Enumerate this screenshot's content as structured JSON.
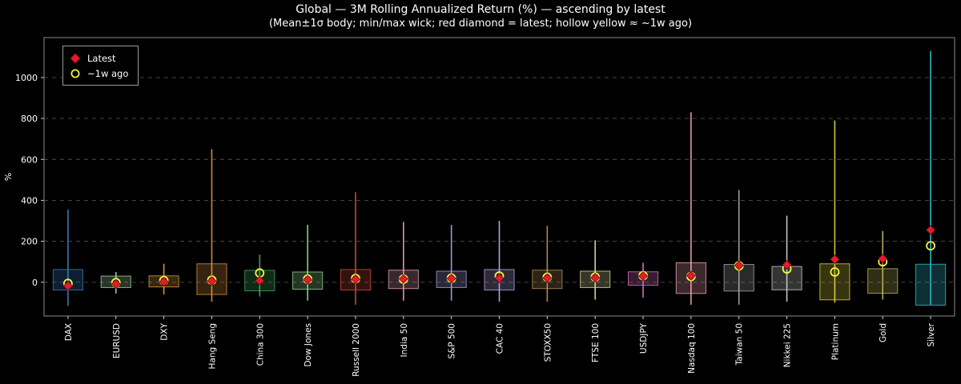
{
  "header": {
    "title": "Global — 3M Rolling Annualized Return (%) — ascending by latest",
    "subtitle": "(Mean±1σ body; min/max wick; red diamond = latest; hollow yellow ≈ ~1w ago)"
  },
  "legend": {
    "latest_label": "Latest",
    "week_label": "~1w ago"
  },
  "chart_data": {
    "type": "bar",
    "variant": "range-box-with-wicks",
    "title": "Global — 3M Rolling Annualized Return (%) — ascending by latest",
    "ylabel": "%",
    "yticks": [
      0,
      200,
      400,
      600,
      800,
      1000
    ],
    "ylim": [
      -165,
      1195
    ],
    "grid": "dashed-horizontal",
    "legend_position": "upper-left",
    "marker_latest_color": "#e8192e",
    "marker_week_color": "#f5f53a",
    "categories": [
      "DAX",
      "EURUSD",
      "DXY",
      "Hang Seng",
      "China 300",
      "Dow Jones",
      "Russell 2000",
      "India 50",
      "S&P 500",
      "CAC 40",
      "STOXX50",
      "FTSE 100",
      "USDJPY",
      "Nasdaq 100",
      "Taiwan 50",
      "Nikkei 225",
      "Platinum",
      "Gold",
      "Silver"
    ],
    "series": [
      {
        "name": "DAX",
        "color": "#3b7bc4",
        "min": -115,
        "max": 355,
        "mean": 12,
        "sigma": 50,
        "latest": -18,
        "week_ago": -6
      },
      {
        "name": "EURUSD",
        "color": "#9fd49f",
        "min": -55,
        "max": 50,
        "mean": 2,
        "sigma": 28,
        "latest": -8,
        "week_ago": -2
      },
      {
        "name": "DXY",
        "color": "#e09c3c",
        "min": -60,
        "max": 90,
        "mean": 4,
        "sigma": 27,
        "latest": 2,
        "week_ago": 8
      },
      {
        "name": "Hang Seng",
        "color": "#d9913f",
        "min": -95,
        "max": 650,
        "mean": 15,
        "sigma": 75,
        "latest": 6,
        "week_ago": 10
      },
      {
        "name": "China 300",
        "color": "#45a85a",
        "min": -70,
        "max": 135,
        "mean": 8,
        "sigma": 50,
        "latest": 8,
        "week_ago": 45
      },
      {
        "name": "Dow Jones",
        "color": "#8fd98f",
        "min": -90,
        "max": 280,
        "mean": 8,
        "sigma": 42,
        "latest": 12,
        "week_ago": 15
      },
      {
        "name": "Russell 2000",
        "color": "#d14a3d",
        "min": -110,
        "max": 440,
        "mean": 12,
        "sigma": 50,
        "latest": 15,
        "week_ago": 18
      },
      {
        "name": "India 50",
        "color": "#e8a0b8",
        "min": -90,
        "max": 295,
        "mean": 14,
        "sigma": 45,
        "latest": 16,
        "week_ago": 15
      },
      {
        "name": "S&P 500",
        "color": "#a89fe0",
        "min": -90,
        "max": 280,
        "mean": 14,
        "sigma": 40,
        "latest": 18,
        "week_ago": 20
      },
      {
        "name": "CAC 40",
        "color": "#b7a8e8",
        "min": -95,
        "max": 300,
        "mean": 12,
        "sigma": 50,
        "latest": 19,
        "week_ago": 30
      },
      {
        "name": "STOXX50",
        "color": "#b5915a",
        "min": -95,
        "max": 275,
        "mean": 14,
        "sigma": 45,
        "latest": 20,
        "week_ago": 24
      },
      {
        "name": "FTSE 100",
        "color": "#ded9a0",
        "min": -85,
        "max": 205,
        "mean": 14,
        "sigma": 40,
        "latest": 22,
        "week_ago": 25
      },
      {
        "name": "USDJPY",
        "color": "#dd74c4",
        "min": -75,
        "max": 95,
        "mean": 18,
        "sigma": 33,
        "latest": 30,
        "week_ago": 32
      },
      {
        "name": "Nasdaq 100",
        "color": "#eda4b4",
        "min": -110,
        "max": 830,
        "mean": 20,
        "sigma": 75,
        "latest": 32,
        "week_ago": 28
      },
      {
        "name": "Taiwan 50",
        "color": "#a8a8a8",
        "min": -110,
        "max": 450,
        "mean": 22,
        "sigma": 65,
        "latest": 82,
        "week_ago": 80
      },
      {
        "name": "Nikkei 225",
        "color": "#d0d0d0",
        "min": -95,
        "max": 325,
        "mean": 20,
        "sigma": 57,
        "latest": 85,
        "week_ago": 65
      },
      {
        "name": "Platinum",
        "color": "#ddd23e",
        "min": -100,
        "max": 790,
        "mean": 2,
        "sigma": 88,
        "latest": 112,
        "week_ago": 50
      },
      {
        "name": "Gold",
        "color": "#c2b858",
        "min": -85,
        "max": 250,
        "mean": 6,
        "sigma": 60,
        "latest": 115,
        "week_ago": 100
      },
      {
        "name": "Silver",
        "color": "#2fc0cf",
        "min": -110,
        "max": 1130,
        "mean": -12,
        "sigma": 100,
        "latest": 255,
        "week_ago": 178
      }
    ]
  }
}
